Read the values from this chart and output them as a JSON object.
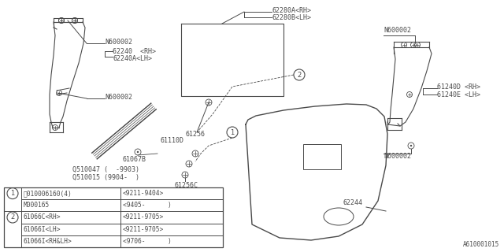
{
  "bg_color": "#ffffff",
  "line_color": "#4a4a4a",
  "annotation_id": "A610001015",
  "font_size": 6.0,
  "table": {
    "rows": [
      {
        "circle": "1",
        "col1": "Ⓑ010006160(4)",
        "col2": "<9211-9404>"
      },
      {
        "circle": "",
        "col1": "M000165",
        "col2": "<9405-      )"
      },
      {
        "circle": "2",
        "col1": "61066C<RH>",
        "col2": "<9211-9705>"
      },
      {
        "circle": "",
        "col1": "61066I<LH>",
        "col2": "<9211-9705>"
      },
      {
        "circle": "",
        "col1": "61066I<RH&LH>",
        "col2": "<9706-      )"
      }
    ]
  }
}
